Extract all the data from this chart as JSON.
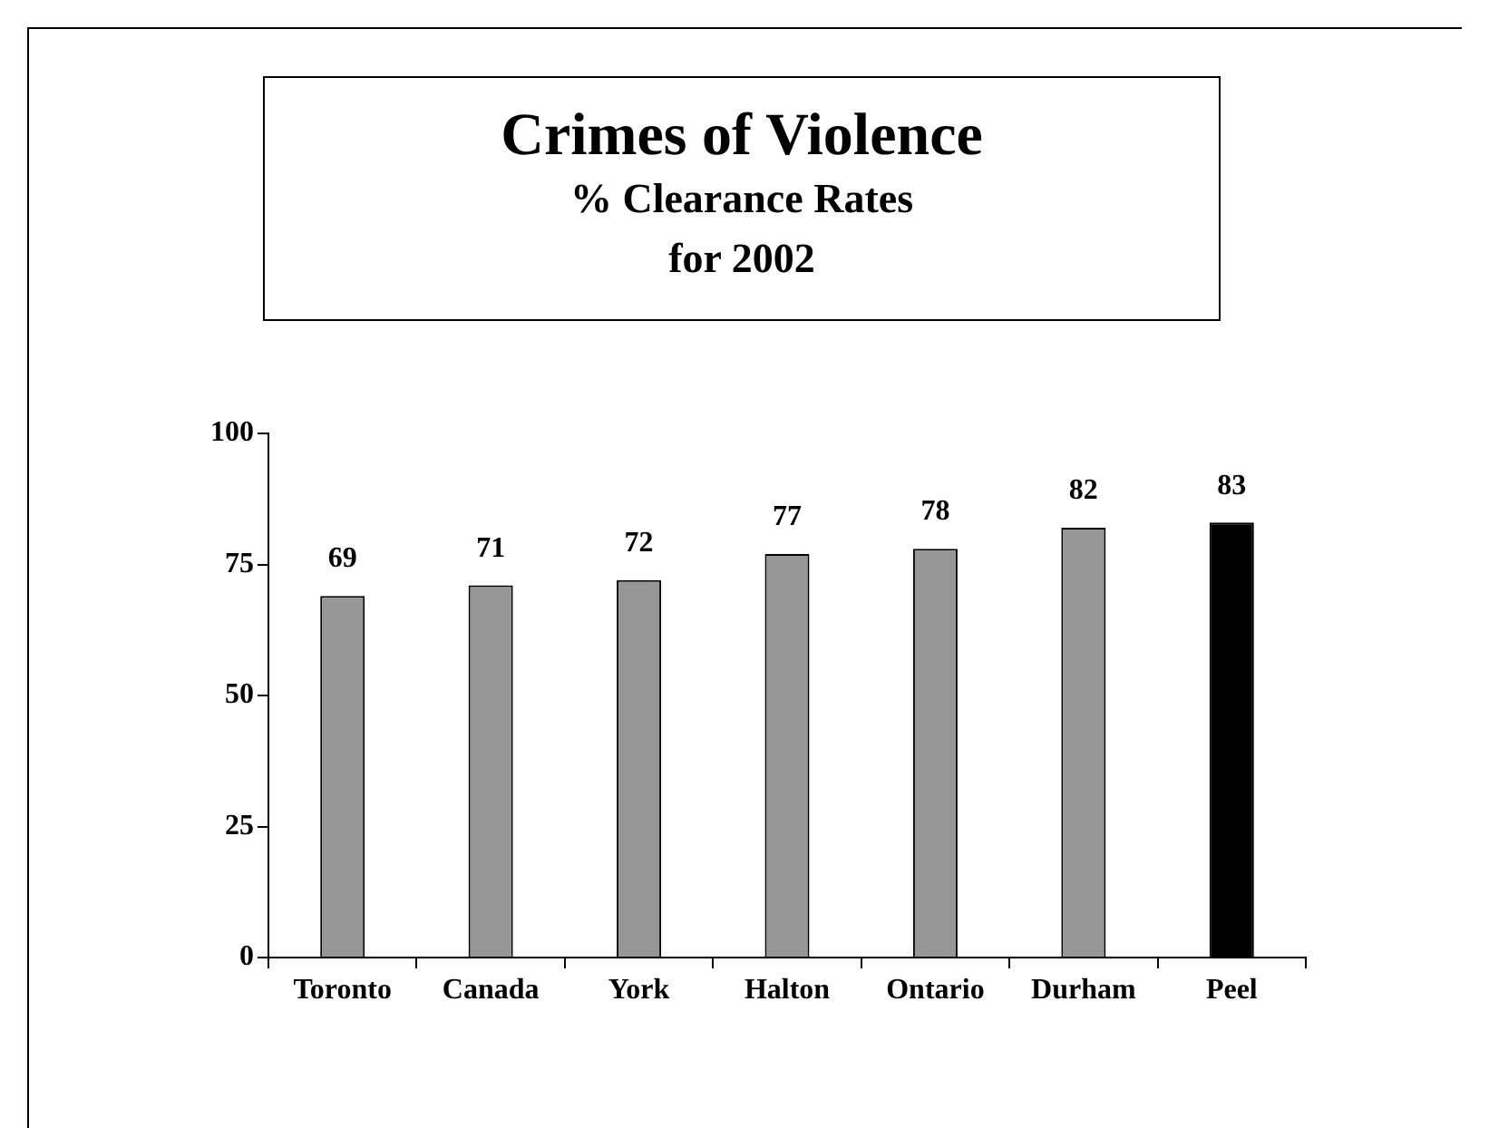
{
  "chart_data": {
    "type": "bar",
    "title": "Crimes of Violence",
    "subtitle": "% Clearance Rates\nfor 2002",
    "categories": [
      "Toronto",
      "Canada",
      "York",
      "Halton",
      "Ontario",
      "Durham",
      "Peel"
    ],
    "values": [
      69,
      71,
      72,
      77,
      78,
      82,
      83
    ],
    "colors": [
      "#969696",
      "#969696",
      "#969696",
      "#969696",
      "#969696",
      "#969696",
      "#000000"
    ],
    "ylim": [
      0,
      100
    ],
    "yticks": [
      0,
      25,
      50,
      75,
      100
    ],
    "grid": false,
    "legend": false,
    "data_labels": true
  }
}
